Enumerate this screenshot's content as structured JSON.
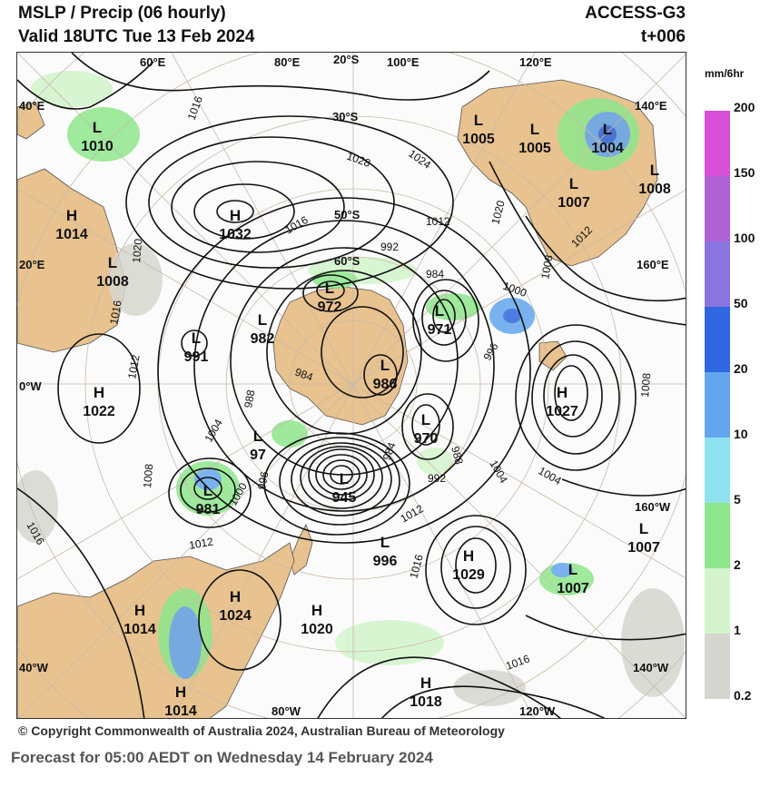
{
  "header": {
    "title_line1": "MSLP / Precip  (06 hourly)",
    "title_line2": "Valid 18UTC Tue 13 Feb 2024",
    "model": "ACCESS-G3",
    "lead": "t+006"
  },
  "legend": {
    "units": "mm/6hr",
    "levels": [
      {
        "value": "200",
        "color": "#ffffff"
      },
      {
        "value": "150",
        "color": "#d94fd7"
      },
      {
        "value": "100",
        "color": "#b062d4"
      },
      {
        "value": "50",
        "color": "#8a74e0"
      },
      {
        "value": "20",
        "color": "#2f67e0"
      },
      {
        "value": "10",
        "color": "#63a6ee"
      },
      {
        "value": "5",
        "color": "#8fe3f0"
      },
      {
        "value": "2",
        "color": "#8ee68c"
      },
      {
        "value": "1",
        "color": "#d3f4cc"
      },
      {
        "value": "0.2",
        "color": "#d6d6d0"
      }
    ]
  },
  "map": {
    "land_color": "#e8c28f",
    "grid_labels": [
      "60°E",
      "80°E",
      "20°S",
      "100°E",
      "120°E",
      "40°E",
      "140°E",
      "30°S",
      "50°S",
      "60°S",
      "20°E",
      "160°E",
      "0°W",
      "160°W",
      "40°W",
      "140°W",
      "80°W",
      "120°W"
    ],
    "pressure_centres": [
      {
        "type": "L",
        "value": "1010"
      },
      {
        "type": "H",
        "value": "1014"
      },
      {
        "type": "L",
        "value": "1008"
      },
      {
        "type": "H",
        "value": "1032"
      },
      {
        "type": "L",
        "value": "972"
      },
      {
        "type": "L",
        "value": "982"
      },
      {
        "type": "L",
        "value": "991"
      },
      {
        "type": "H",
        "value": "1022"
      },
      {
        "type": "L",
        "value": "986"
      },
      {
        "type": "L",
        "value": "971"
      },
      {
        "type": "L",
        "value": "1005"
      },
      {
        "type": "L",
        "value": "1005"
      },
      {
        "type": "L",
        "value": "1004"
      },
      {
        "type": "L",
        "value": "1007"
      },
      {
        "type": "L",
        "value": "1008"
      },
      {
        "type": "H",
        "value": "1027"
      },
      {
        "type": "L",
        "value": "970"
      },
      {
        "type": "L",
        "value": "97"
      },
      {
        "type": "L",
        "value": "945"
      },
      {
        "type": "L",
        "value": "981"
      },
      {
        "type": "L",
        "value": "996"
      },
      {
        "type": "H",
        "value": "1029"
      },
      {
        "type": "L",
        "value": "1007"
      },
      {
        "type": "L",
        "value": "1007"
      },
      {
        "type": "H",
        "value": "1024"
      },
      {
        "type": "H",
        "value": "1014"
      },
      {
        "type": "H",
        "value": "1020"
      },
      {
        "type": "H",
        "value": "1014"
      },
      {
        "type": "H",
        "value": "1018"
      }
    ],
    "isobar_labels": [
      "1016",
      "1028",
      "1024",
      "1016",
      "1012",
      "1020",
      "1020",
      "992",
      "984",
      "1000",
      "1012",
      "1008",
      "1016",
      "1012",
      "984",
      "996",
      "988",
      "1004",
      "1008",
      "1000",
      "996",
      "984",
      "988",
      "1004",
      "992",
      "1012",
      "1016",
      "1012",
      "1016",
      "1016",
      "1008",
      "1004"
    ]
  },
  "footer": {
    "copyright": "© Copyright Commonwealth of Australia 2024, Australian Bureau of Meteorology",
    "forecast": "Forecast for 05:00 AEDT on Wednesday 14 February 2024"
  }
}
